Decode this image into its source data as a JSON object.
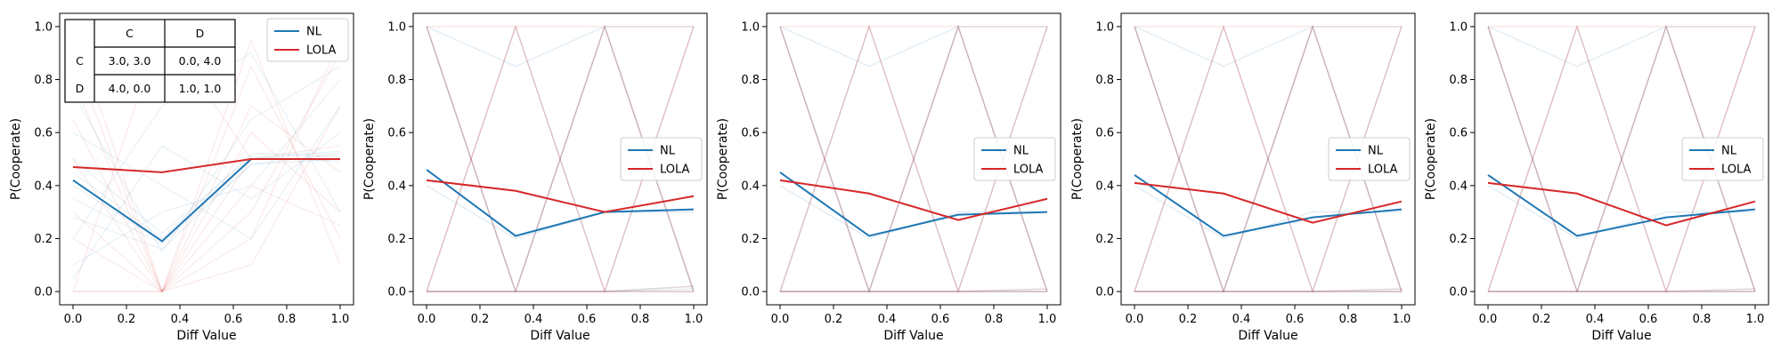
{
  "colors": {
    "nl": "#1f77b4",
    "lola": "#d62728"
  },
  "chart_data": [
    {
      "type": "line",
      "xlabel": "Diff Value",
      "ylabel": "P(Cooperate)",
      "x": [
        0.0,
        0.3333,
        0.6667,
        1.0
      ],
      "xlim": [
        -0.05,
        1.05
      ],
      "ylim": [
        -0.05,
        1.05
      ],
      "xticks": [
        "0.0",
        "0.2",
        "0.4",
        "0.6",
        "0.8",
        "1.0"
      ],
      "yticks": [
        "0.0",
        "0.2",
        "0.4",
        "0.6",
        "0.8",
        "1.0"
      ],
      "legend": {
        "position": "upper right",
        "entries": [
          "NL",
          "LOLA"
        ]
      },
      "series": [
        {
          "name": "NL",
          "color": "#1f77b4",
          "values": [
            0.42,
            0.19,
            0.5,
            0.5
          ]
        },
        {
          "name": "LOLA",
          "color": "#d62728",
          "values": [
            0.47,
            0.45,
            0.5,
            0.5
          ]
        }
      ],
      "faint_runs": {
        "NL": [
          [
            0.4,
            0.19,
            0.5,
            0.53
          ],
          [
            0.35,
            0.18,
            0.48,
            0.52
          ],
          [
            0.45,
            0.2,
            0.52,
            0.51
          ],
          [
            0.28,
            0.16,
            0.48,
            0.5
          ],
          [
            0.5,
            0.22,
            0.51,
            0.49
          ],
          [
            0.1,
            0.3,
            0.4,
            0.8
          ],
          [
            0.6,
            0.4,
            0.2,
            0.7
          ],
          [
            0.2,
            0.7,
            0.9,
            0.3
          ],
          [
            0.75,
            0.15,
            0.65,
            0.85
          ],
          [
            0.05,
            0.55,
            0.35,
            0.6
          ]
        ],
        "LOLA": [
          [
            1.0,
            0.0,
            0.5,
            0.5
          ],
          [
            0.0,
            0.0,
            0.85,
            0.2
          ],
          [
            0.0,
            0.0,
            0.3,
            0.9
          ],
          [
            0.9,
            0.0,
            0.6,
            0.3
          ],
          [
            0.2,
            0.0,
            0.1,
            0.7
          ],
          [
            0.5,
            0.0,
            0.7,
            0.45
          ],
          [
            0.8,
            0.0,
            0.2,
            0.95
          ],
          [
            0.3,
            0.0,
            0.95,
            0.1
          ],
          [
            0.0,
            1.0,
            0.5,
            0.55
          ],
          [
            0.65,
            0.0,
            0.4,
            0.25
          ]
        ]
      },
      "payoff_table": {
        "columns": [
          "",
          "C",
          "D"
        ],
        "rows": [
          [
            "C",
            "3.0, 3.0",
            "0.0, 4.0"
          ],
          [
            "D",
            "4.0, 0.0",
            "1.0, 1.0"
          ]
        ]
      }
    },
    {
      "type": "line",
      "xlabel": "Diff Value",
      "ylabel": "P(Cooperate)",
      "x": [
        0.0,
        0.3333,
        0.6667,
        1.0
      ],
      "xlim": [
        -0.05,
        1.05
      ],
      "ylim": [
        -0.05,
        1.05
      ],
      "xticks": [
        "0.0",
        "0.2",
        "0.4",
        "0.6",
        "0.8",
        "1.0"
      ],
      "yticks": [
        "0.0",
        "0.2",
        "0.4",
        "0.6",
        "0.8",
        "1.0"
      ],
      "legend": {
        "position": "center right",
        "entries": [
          "NL",
          "LOLA"
        ]
      },
      "series": [
        {
          "name": "NL",
          "color": "#1f77b4",
          "values": [
            0.46,
            0.21,
            0.3,
            0.31
          ]
        },
        {
          "name": "LOLA",
          "color": "#d62728",
          "values": [
            0.42,
            0.38,
            0.3,
            0.36
          ]
        }
      ],
      "faint_runs": {
        "NL": [
          [
            1.0,
            0.0,
            1.0,
            0.0
          ],
          [
            0.0,
            1.0,
            0.0,
            1.0
          ],
          [
            1.0,
            0.0,
            0.0,
            0.0
          ],
          [
            0.0,
            0.0,
            1.0,
            0.0
          ],
          [
            0.0,
            0.0,
            0.0,
            0.02
          ],
          [
            1.0,
            0.85,
            1.0,
            1.0
          ],
          [
            0.4,
            0.2,
            0.3,
            0.3
          ],
          [
            0.0,
            0.0,
            0.0,
            0.01
          ]
        ],
        "LOLA": [
          [
            1.0,
            0.0,
            1.0,
            0.0
          ],
          [
            0.0,
            1.0,
            0.0,
            1.0
          ],
          [
            1.0,
            0.0,
            0.0,
            0.0
          ],
          [
            0.0,
            1.0,
            0.0,
            0.0
          ],
          [
            1.0,
            1.0,
            1.0,
            1.0
          ],
          [
            0.0,
            0.0,
            1.0,
            0.0
          ],
          [
            0.0,
            0.0,
            0.0,
            1.0
          ],
          [
            0.0,
            0.0,
            0.0,
            0.02
          ]
        ]
      }
    },
    {
      "type": "line",
      "xlabel": "Diff Value",
      "ylabel": "P(Cooperate)",
      "x": [
        0.0,
        0.3333,
        0.6667,
        1.0
      ],
      "xlim": [
        -0.05,
        1.05
      ],
      "ylim": [
        -0.05,
        1.05
      ],
      "xticks": [
        "0.0",
        "0.2",
        "0.4",
        "0.6",
        "0.8",
        "1.0"
      ],
      "yticks": [
        "0.0",
        "0.2",
        "0.4",
        "0.6",
        "0.8",
        "1.0"
      ],
      "legend": {
        "position": "center right",
        "entries": [
          "NL",
          "LOLA"
        ]
      },
      "series": [
        {
          "name": "NL",
          "color": "#1f77b4",
          "values": [
            0.45,
            0.21,
            0.29,
            0.3
          ]
        },
        {
          "name": "LOLA",
          "color": "#d62728",
          "values": [
            0.42,
            0.37,
            0.27,
            0.35
          ]
        }
      ],
      "faint_runs": {
        "NL": [
          [
            1.0,
            0.0,
            1.0,
            0.0
          ],
          [
            0.0,
            1.0,
            0.0,
            1.0
          ],
          [
            1.0,
            0.0,
            0.0,
            0.0
          ],
          [
            0.0,
            0.0,
            1.0,
            0.0
          ],
          [
            0.0,
            0.0,
            0.0,
            0.01
          ],
          [
            1.0,
            0.85,
            1.0,
            1.0
          ],
          [
            0.4,
            0.2,
            0.3,
            0.3
          ],
          [
            0.0,
            0.0,
            0.0,
            0.0
          ]
        ],
        "LOLA": [
          [
            1.0,
            0.0,
            1.0,
            0.0
          ],
          [
            0.0,
            1.0,
            0.0,
            1.0
          ],
          [
            1.0,
            0.0,
            0.0,
            0.0
          ],
          [
            0.0,
            1.0,
            0.0,
            0.0
          ],
          [
            1.0,
            1.0,
            1.0,
            1.0
          ],
          [
            0.0,
            0.0,
            1.0,
            0.0
          ],
          [
            0.0,
            0.0,
            0.0,
            1.0
          ],
          [
            0.0,
            0.0,
            0.0,
            0.01
          ]
        ]
      }
    },
    {
      "type": "line",
      "xlabel": "Diff Value",
      "ylabel": "P(Cooperate)",
      "x": [
        0.0,
        0.3333,
        0.6667,
        1.0
      ],
      "xlim": [
        -0.05,
        1.05
      ],
      "ylim": [
        -0.05,
        1.05
      ],
      "xticks": [
        "0.0",
        "0.2",
        "0.4",
        "0.6",
        "0.8",
        "1.0"
      ],
      "yticks": [
        "0.0",
        "0.2",
        "0.4",
        "0.6",
        "0.8",
        "1.0"
      ],
      "legend": {
        "position": "center right",
        "entries": [
          "NL",
          "LOLA"
        ]
      },
      "series": [
        {
          "name": "NL",
          "color": "#1f77b4",
          "values": [
            0.44,
            0.21,
            0.28,
            0.31
          ]
        },
        {
          "name": "LOLA",
          "color": "#d62728",
          "values": [
            0.41,
            0.37,
            0.26,
            0.34
          ]
        }
      ],
      "faint_runs": {
        "NL": [
          [
            1.0,
            0.0,
            1.0,
            0.0
          ],
          [
            0.0,
            1.0,
            0.0,
            1.0
          ],
          [
            1.0,
            0.0,
            0.0,
            0.0
          ],
          [
            0.0,
            0.0,
            1.0,
            0.0
          ],
          [
            0.0,
            0.0,
            0.0,
            0.01
          ],
          [
            1.0,
            0.85,
            1.0,
            1.0
          ],
          [
            0.4,
            0.2,
            0.3,
            0.3
          ],
          [
            0.0,
            0.0,
            0.0,
            0.0
          ]
        ],
        "LOLA": [
          [
            1.0,
            0.0,
            1.0,
            0.0
          ],
          [
            0.0,
            1.0,
            0.0,
            1.0
          ],
          [
            1.0,
            0.0,
            0.0,
            0.0
          ],
          [
            0.0,
            1.0,
            0.0,
            0.0
          ],
          [
            1.0,
            1.0,
            1.0,
            1.0
          ],
          [
            0.0,
            0.0,
            1.0,
            0.0
          ],
          [
            0.0,
            0.0,
            0.0,
            1.0
          ],
          [
            0.0,
            0.0,
            0.0,
            0.01
          ]
        ]
      }
    },
    {
      "type": "line",
      "xlabel": "Diff Value",
      "ylabel": "P(Cooperate)",
      "x": [
        0.0,
        0.3333,
        0.6667,
        1.0
      ],
      "xlim": [
        -0.05,
        1.05
      ],
      "ylim": [
        -0.05,
        1.05
      ],
      "xticks": [
        "0.0",
        "0.2",
        "0.4",
        "0.6",
        "0.8",
        "1.0"
      ],
      "yticks": [
        "0.0",
        "0.2",
        "0.4",
        "0.6",
        "0.8",
        "1.0"
      ],
      "legend": {
        "position": "center right",
        "entries": [
          "NL",
          "LOLA"
        ]
      },
      "series": [
        {
          "name": "NL",
          "color": "#1f77b4",
          "values": [
            0.44,
            0.21,
            0.28,
            0.31
          ]
        },
        {
          "name": "LOLA",
          "color": "#d62728",
          "values": [
            0.41,
            0.37,
            0.25,
            0.34
          ]
        }
      ],
      "faint_runs": {
        "NL": [
          [
            1.0,
            0.0,
            1.0,
            0.0
          ],
          [
            0.0,
            1.0,
            0.0,
            1.0
          ],
          [
            1.0,
            0.0,
            0.0,
            0.0
          ],
          [
            0.0,
            0.0,
            1.0,
            0.0
          ],
          [
            0.0,
            0.0,
            0.0,
            0.01
          ],
          [
            1.0,
            0.85,
            1.0,
            1.0
          ],
          [
            0.4,
            0.2,
            0.3,
            0.3
          ],
          [
            0.0,
            0.0,
            0.0,
            0.0
          ]
        ],
        "LOLA": [
          [
            1.0,
            0.0,
            1.0,
            0.0
          ],
          [
            0.0,
            1.0,
            0.0,
            1.0
          ],
          [
            1.0,
            0.0,
            0.0,
            0.0
          ],
          [
            0.0,
            1.0,
            0.0,
            0.0
          ],
          [
            1.0,
            1.0,
            1.0,
            1.0
          ],
          [
            0.0,
            0.0,
            1.0,
            0.0
          ],
          [
            0.0,
            0.0,
            0.0,
            1.0
          ],
          [
            0.0,
            0.0,
            0.0,
            0.01
          ]
        ]
      }
    }
  ]
}
